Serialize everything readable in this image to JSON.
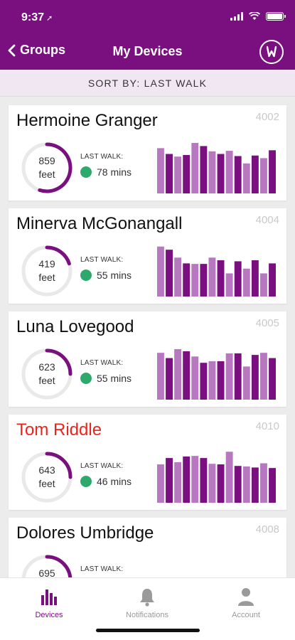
{
  "status_bar": {
    "time": "9:37"
  },
  "nav": {
    "back_label": "Groups",
    "title": "My Devices"
  },
  "sort": {
    "label": "SORT BY: LAST WALK"
  },
  "colors": {
    "brand": "#7a0f80",
    "bar_dark": "#7a0f80",
    "bar_light": "#b778c0",
    "ring_track": "#e9e9e9",
    "status_ok": "#2daa6b",
    "alert_name": "#e8261e"
  },
  "last_walk_label": "LAST WALK:",
  "devices": [
    {
      "name": "Hermoine Granger",
      "id": "4002",
      "distance": "859",
      "unit": "feet",
      "last_walk": "78 mins",
      "alert": false,
      "ring_fraction": 0.55,
      "bars": [
        0.86,
        0.75,
        0.7,
        0.73,
        0.96,
        0.9,
        0.8,
        0.75,
        0.81,
        0.71,
        0.57,
        0.72,
        0.67,
        0.82
      ]
    },
    {
      "name": "Minerva McGonangall",
      "id": "4004",
      "distance": "419",
      "unit": "feet",
      "last_walk": "55 mins",
      "alert": false,
      "ring_fraction": 0.2,
      "bars": [
        0.95,
        0.89,
        0.74,
        0.63,
        0.62,
        0.62,
        0.74,
        0.69,
        0.44,
        0.67,
        0.53,
        0.69,
        0.44,
        0.63
      ]
    },
    {
      "name": "Luna Lovegood",
      "id": "4005",
      "distance": "623",
      "unit": "feet",
      "last_walk": "55 mins",
      "alert": false,
      "ring_fraction": 0.25,
      "bars": [
        0.89,
        0.79,
        0.96,
        0.92,
        0.82,
        0.7,
        0.73,
        0.73,
        0.88,
        0.88,
        0.63,
        0.85,
        0.89,
        0.79
      ]
    },
    {
      "name": "Tom Riddle",
      "id": "4010",
      "distance": "643",
      "unit": "feet",
      "last_walk": "46 mins",
      "alert": true,
      "ring_fraction": 0.25,
      "bars": [
        0.73,
        0.85,
        0.77,
        0.88,
        0.89,
        0.85,
        0.74,
        0.73,
        0.97,
        0.7,
        0.69,
        0.67,
        0.75,
        0.66
      ]
    },
    {
      "name": "Dolores Umbridge",
      "id": "4008",
      "distance": "695",
      "unit": "feet",
      "last_walk": "",
      "alert": false,
      "ring_fraction": 0.25,
      "bars": [
        0.1,
        0.12,
        0.1,
        0.15,
        0.1,
        0.35,
        0.42,
        0.25,
        0.1,
        0.15,
        0.25,
        0.3,
        0.22,
        0.3
      ]
    }
  ],
  "tabs": [
    {
      "label": "Devices",
      "icon": "bar-chart-icon",
      "active": true
    },
    {
      "label": "Notifications",
      "icon": "bell-icon",
      "active": false
    },
    {
      "label": "Account",
      "icon": "person-icon",
      "active": false
    }
  ]
}
